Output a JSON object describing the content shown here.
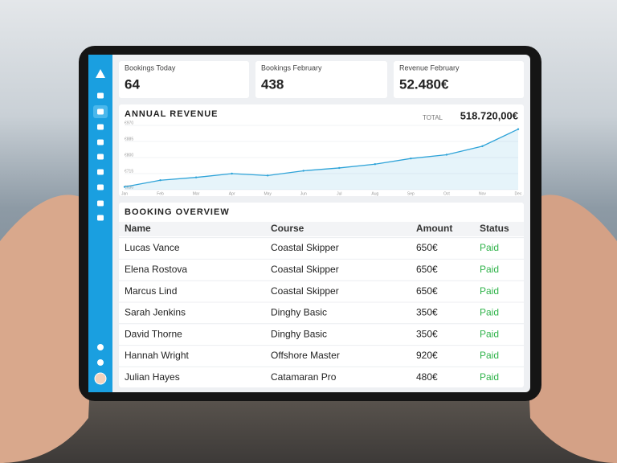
{
  "stats": [
    {
      "label": "Bookings Today",
      "value": "64"
    },
    {
      "label": "Bookings February",
      "value": "438"
    },
    {
      "label": "Revenue February",
      "value": "52.480€"
    }
  ],
  "chart_data": {
    "type": "line",
    "title": "ANNUAL REVENUE",
    "categories": [
      "Jan",
      "Feb",
      "Mar",
      "Apr",
      "May",
      "Jun",
      "Jul",
      "Aug",
      "Sep",
      "Oct",
      "Nov",
      "Dec"
    ],
    "series": [
      {
        "name": "Revenue",
        "color": "#2ea3d8",
        "values": [
          645,
          680,
          695,
          715,
          705,
          730,
          745,
          765,
          795,
          815,
          860,
          950
        ]
      }
    ],
    "ylim": [
      630,
      970
    ],
    "yticks": [
      {
        "value": 630,
        "label": "€630"
      },
      {
        "value": 715,
        "label": "€715"
      },
      {
        "value": 800,
        "label": "€800"
      },
      {
        "value": 885,
        "label": "€885"
      },
      {
        "value": 970,
        "label": "€970"
      }
    ],
    "grid": true,
    "area": true
  },
  "revenue_total": {
    "label": "TOTAL",
    "value": "518.720,00€"
  },
  "table": {
    "title": "BOOKING OVERVIEW",
    "columns": [
      "Name",
      "Course",
      "Amount",
      "Status"
    ],
    "rows": [
      [
        "Lucas Vance",
        "Coastal Skipper",
        "650€",
        "Paid"
      ],
      [
        "Elena Rostova",
        "Coastal Skipper",
        "650€",
        "Paid"
      ],
      [
        "Marcus Lind",
        "Coastal Skipper",
        "650€",
        "Paid"
      ],
      [
        "Sarah Jenkins",
        "Dinghy Basic",
        "350€",
        "Paid"
      ],
      [
        "David Thorne",
        "Dinghy Basic",
        "350€",
        "Paid"
      ],
      [
        "Hannah Wright",
        "Offshore Master",
        "920€",
        "Paid"
      ],
      [
        "Julian Hayes",
        "Catamaran Pro",
        "480€",
        "Paid"
      ]
    ]
  }
}
